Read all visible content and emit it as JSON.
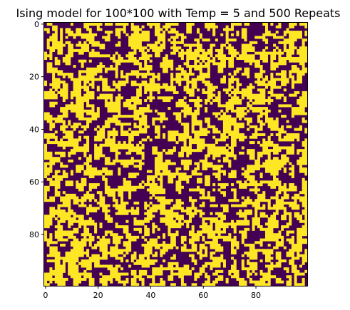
{
  "chart_data": {
    "type": "heatmap",
    "title": "Ising model for 100*100 with Temp = 5 and 500 Repeats",
    "xlabel": "",
    "ylabel": "",
    "grid_size": [
      100,
      100
    ],
    "value_range": [
      -1,
      1
    ],
    "colormap": [
      "#440154",
      "#fde725"
    ],
    "x_ticks": [
      0,
      20,
      40,
      60,
      80
    ],
    "y_ticks": [
      0,
      20,
      40,
      60,
      80
    ],
    "x_tick_labels": [
      "0",
      "20",
      "40",
      "60",
      "80"
    ],
    "y_tick_labels": [
      "0",
      "20",
      "40",
      "60",
      "80"
    ],
    "seed": 20240607,
    "positive_fraction": 0.5,
    "smoothing_passes": 1,
    "y_axis_inverted": true,
    "grid": false,
    "legend": false
  }
}
